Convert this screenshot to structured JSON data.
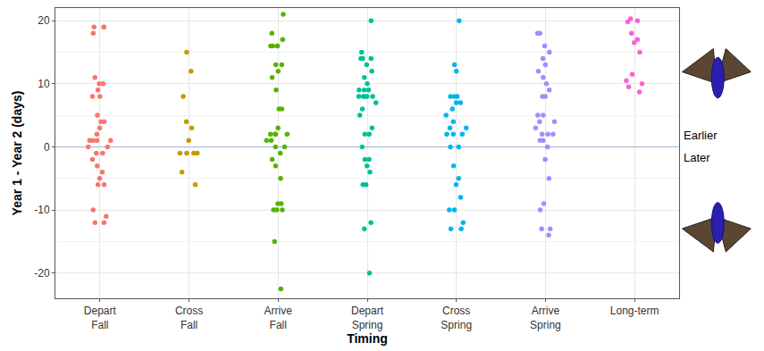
{
  "chart_data": {
    "type": "strip",
    "x_label": "Timing",
    "y_label": "Year 1 - Year 2 (days)",
    "categories": [
      "Depart Fall",
      "Cross Fall",
      "Arrive Fall",
      "Depart Spring",
      "Cross Spring",
      "Arrive Spring",
      "Long-term"
    ],
    "colors": [
      "#F8766D",
      "#C49A00",
      "#53B400",
      "#00C094",
      "#00B6EB",
      "#A58AFF",
      "#FB61D7"
    ],
    "values": [
      [
        19,
        19,
        18,
        19,
        11,
        10,
        10,
        9,
        8,
        8,
        5,
        4,
        4,
        3,
        2,
        1,
        1,
        1,
        1,
        0,
        0,
        -1,
        -1,
        -2,
        -3,
        -4,
        -5,
        -6,
        -6,
        -10,
        -11,
        -12,
        -12
      ],
      [
        15,
        12,
        8,
        4,
        3,
        1,
        -1,
        -1,
        -1,
        -1,
        -4,
        -6
      ],
      [
        21,
        18,
        17,
        16,
        16,
        16,
        13,
        13,
        12,
        11,
        9,
        6,
        6,
        3,
        2,
        2,
        2,
        2,
        1,
        1,
        0,
        0,
        -1,
        -2,
        -3,
        -5,
        -9,
        -9,
        -10,
        -10,
        -10,
        -15,
        -22.5
      ],
      [
        20,
        15,
        14,
        14,
        14,
        13,
        12,
        11,
        10,
        9,
        9,
        9,
        8,
        8,
        8,
        8,
        8,
        7,
        6,
        5,
        3,
        2,
        2,
        0,
        -2,
        -2,
        -3,
        -4,
        -6,
        -6,
        -12,
        -13,
        -20
      ],
      [
        20,
        13,
        12,
        8,
        8,
        8,
        7,
        7,
        6,
        5,
        4,
        3,
        3,
        2,
        2,
        2,
        0,
        0,
        -3,
        -5,
        -6,
        -8,
        -10,
        -10,
        -12,
        -13,
        -13
      ],
      [
        18,
        18,
        16,
        15,
        14,
        13,
        12,
        11,
        10,
        9,
        8,
        8,
        5,
        5,
        4,
        4,
        3,
        2,
        2,
        2,
        1,
        1,
        0,
        -2,
        -5,
        -9,
        -10,
        -13,
        -13,
        -14
      ],
      [
        20.3,
        20,
        19.8,
        18,
        17,
        16.5,
        15,
        11.5,
        10.5,
        10,
        9.5,
        8.7
      ]
    ],
    "ylim": [
      -24,
      22
    ],
    "yticks": [
      -20,
      -10,
      0,
      10,
      20
    ],
    "grid": true,
    "annotations": [
      "Earlier",
      "Later"
    ]
  }
}
